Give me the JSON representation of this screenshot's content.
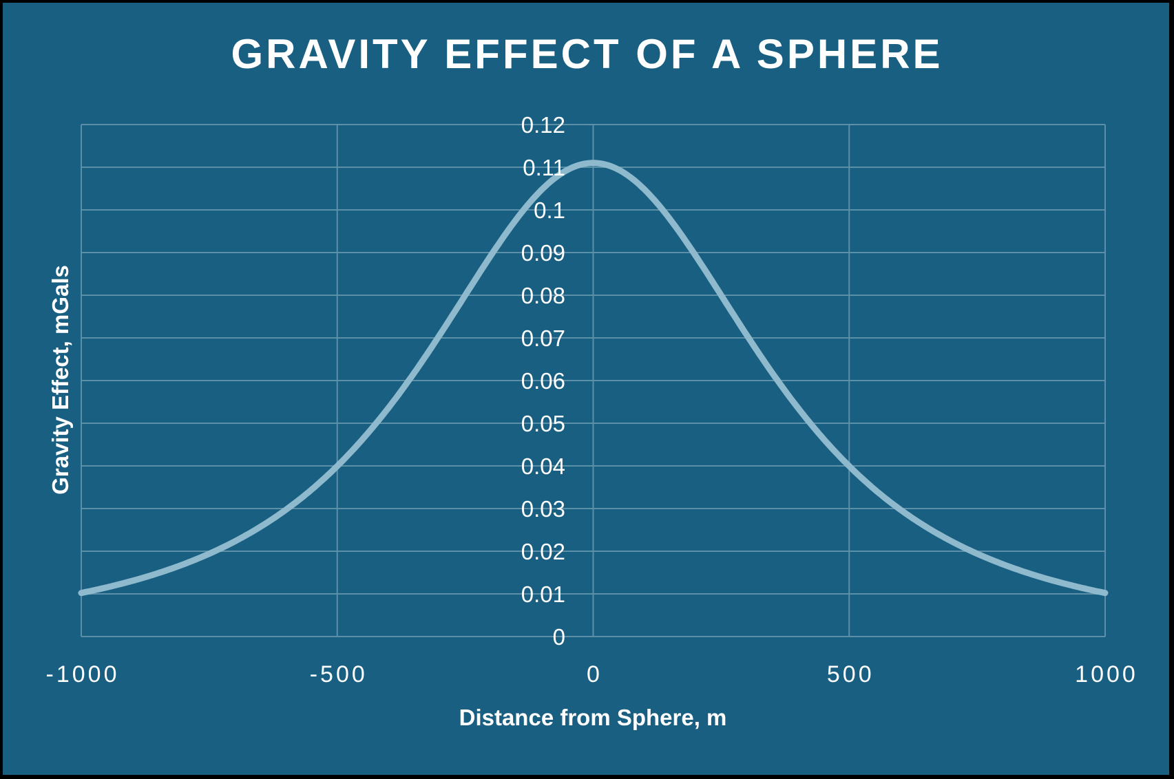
{
  "chart_data": {
    "type": "line",
    "title": "GRAVITY EFFECT OF A SPHERE",
    "xlabel": "Distance from Sphere, m",
    "ylabel": "Gravity Effect, mGals",
    "xlim": [
      -1000,
      1000
    ],
    "ylim": [
      0,
      0.12
    ],
    "grid": true,
    "legend": null,
    "x_ticks": [
      "-1000",
      "-500",
      "0",
      "500",
      "1000"
    ],
    "y_ticks": [
      "0",
      "0.01",
      "0.02",
      "0.03",
      "0.04",
      "0.05",
      "0.06",
      "0.07",
      "0.08",
      "0.09",
      "0.1",
      "0.11",
      "0.12"
    ],
    "series": [
      {
        "name": "Gravity Effect",
        "x": [
          -1000,
          -900,
          -800,
          -700,
          -600,
          -500,
          -400,
          -300,
          -250,
          -200,
          -100,
          0,
          100,
          200,
          250,
          300,
          400,
          500,
          600,
          700,
          800,
          900,
          1000
        ],
        "values": [
          0.01,
          0.013,
          0.018,
          0.024,
          0.031,
          0.04,
          0.055,
          0.071,
          0.08,
          0.088,
          0.104,
          0.111,
          0.104,
          0.088,
          0.08,
          0.071,
          0.055,
          0.04,
          0.031,
          0.024,
          0.018,
          0.013,
          0.01
        ]
      }
    ]
  },
  "colors": {
    "background": "#185f82",
    "grid": "#5c8fa8",
    "curve": "#8fb9cc",
    "text": "#ffffff"
  }
}
